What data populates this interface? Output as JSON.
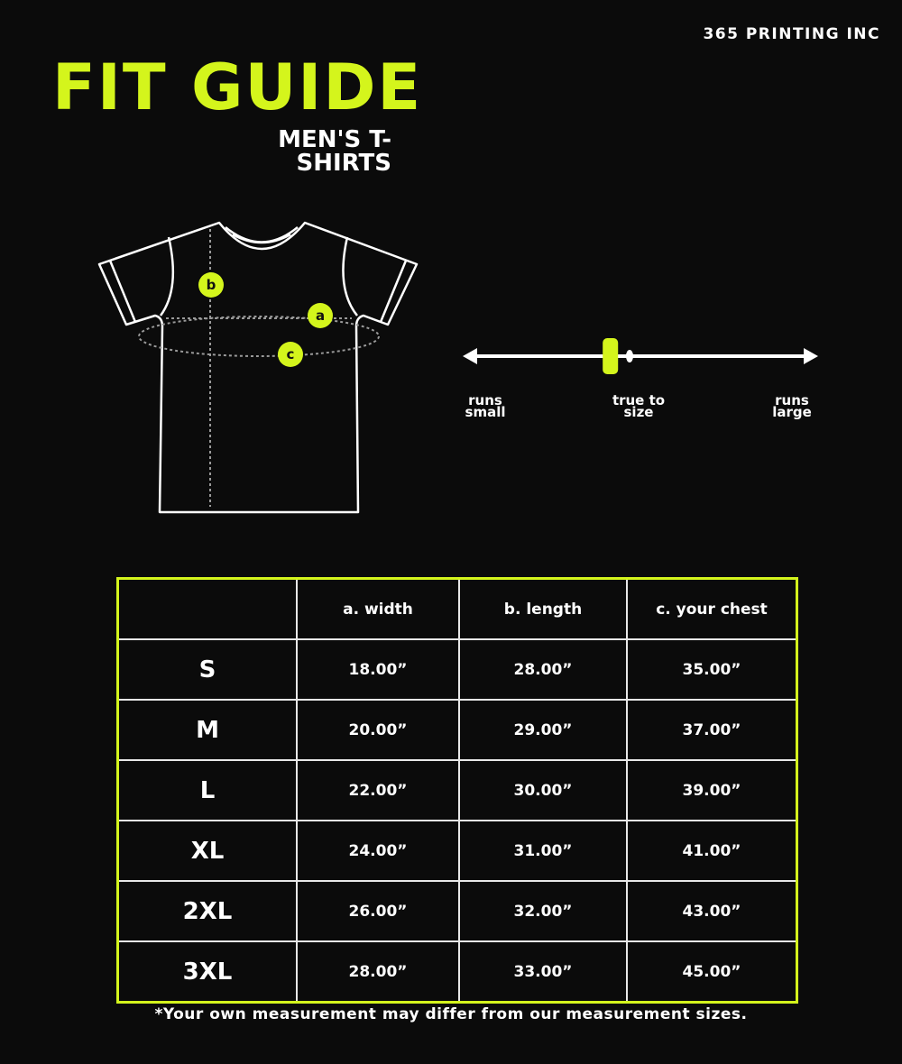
{
  "brand": "365 PRINTING INC",
  "title": "FIT GUIDE",
  "subtitle": "MEN'S T-SHIRTS",
  "colors": {
    "accent": "#d4f51c",
    "background": "#0b0b0b",
    "line": "#ffffff"
  },
  "diagram": {
    "markers": [
      "a",
      "b",
      "c"
    ]
  },
  "fit_scale": {
    "labels": {
      "small": "runs small",
      "true": "true to size",
      "large": "runs large"
    },
    "value": 0.41
  },
  "table": {
    "headers": [
      "",
      "a. width",
      "b. length",
      "c. your chest"
    ],
    "rows": [
      [
        "S",
        "18.00”",
        "28.00”",
        "35.00”"
      ],
      [
        "M",
        "20.00”",
        "29.00”",
        "37.00”"
      ],
      [
        "L",
        "22.00”",
        "30.00”",
        "39.00”"
      ],
      [
        "XL",
        "24.00”",
        "31.00”",
        "41.00”"
      ],
      [
        "2XL",
        "26.00”",
        "32.00”",
        "43.00”"
      ],
      [
        "3XL",
        "28.00”",
        "33.00”",
        "45.00”"
      ]
    ]
  },
  "footnote": "*Your own measurement may differ from our measurement sizes."
}
